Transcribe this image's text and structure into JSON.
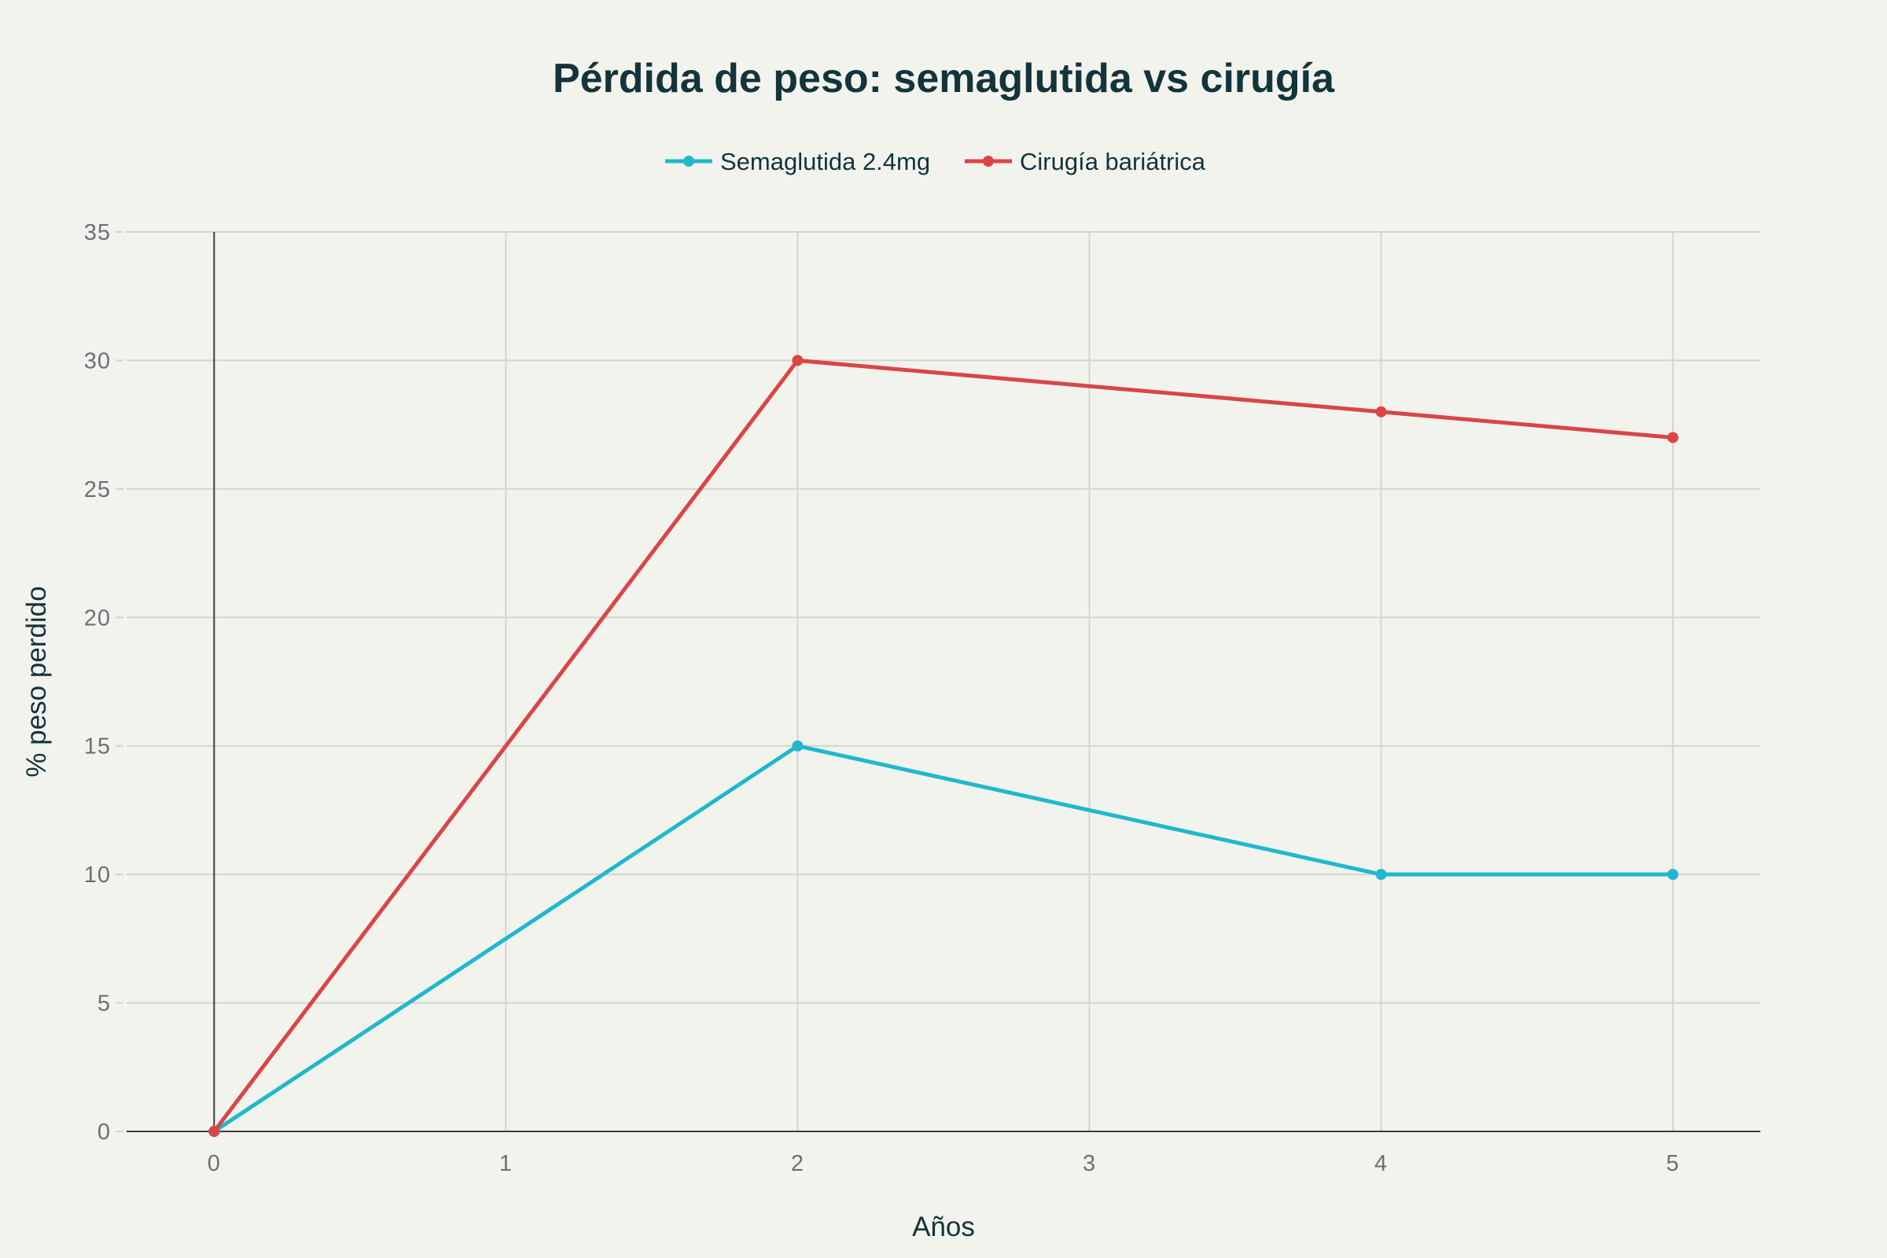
{
  "chart_data": {
    "type": "line",
    "title": "Pérdida de peso: semaglutida vs cirugía",
    "xlabel": "Años",
    "ylabel": "% peso perdido",
    "xlim": [
      -0.3,
      5.3
    ],
    "ylim": [
      0,
      35
    ],
    "xticks": [
      "0",
      "1",
      "2",
      "3",
      "4",
      "5"
    ],
    "yticks": [
      "0",
      "5",
      "10",
      "15",
      "20",
      "25",
      "30",
      "35"
    ],
    "grid": true,
    "legend_position": "top-center",
    "series": [
      {
        "name": "Semaglutida 2.4mg",
        "color": "#1fb8cd",
        "x": [
          0,
          2,
          4,
          5
        ],
        "y": [
          0,
          15,
          10,
          10
        ]
      },
      {
        "name": "Cirugía bariátrica",
        "color": "#db4545",
        "x": [
          0,
          2,
          4,
          5
        ],
        "y": [
          0,
          30,
          28,
          27
        ]
      }
    ]
  }
}
